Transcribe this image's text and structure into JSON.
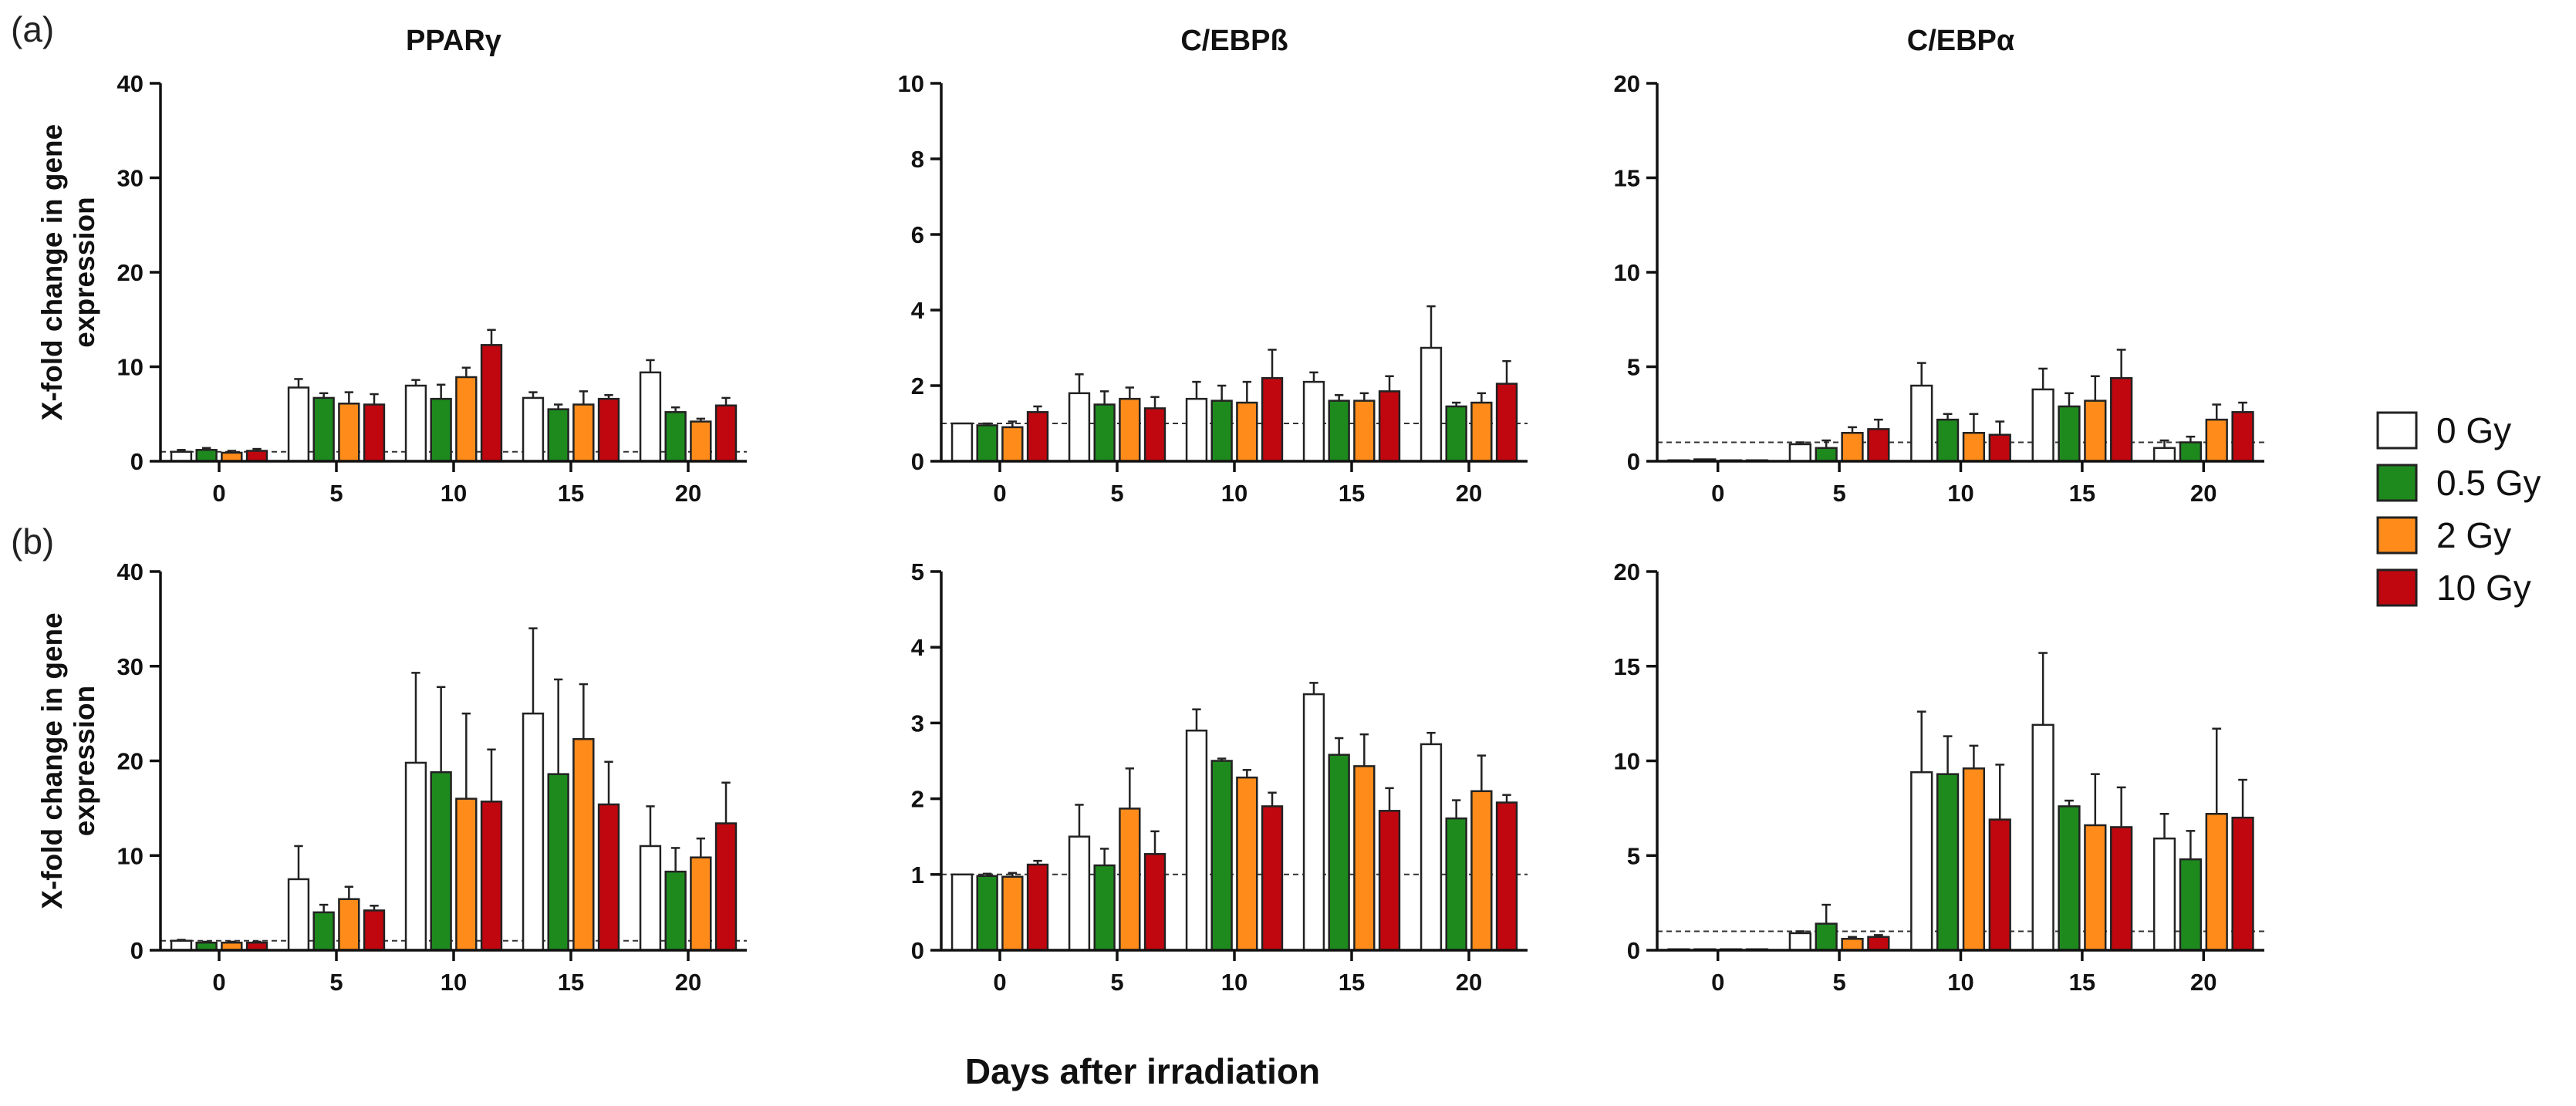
{
  "figure": {
    "panel_labels": [
      "(a)",
      "(b)"
    ],
    "xlabel": "Days after irradiation",
    "ylabel_line1": "X-fold change in gene",
    "ylabel_line2": "expression",
    "legend": [
      {
        "label": "0 Gy",
        "color": "#ffffff"
      },
      {
        "label": "0.5 Gy",
        "color": "#1e8a1e"
      },
      {
        "label": "2 Gy",
        "color": "#ff8c1a"
      },
      {
        "label": "10 Gy",
        "color": "#c0070f"
      }
    ],
    "reference_line": 1
  },
  "chart_data": [
    {
      "type": "bar",
      "row": "a",
      "col": 0,
      "title": "PPARγ",
      "categories": [
        "0",
        "5",
        "10",
        "15",
        "20"
      ],
      "ylim": [
        0,
        40
      ],
      "yticks": [
        0,
        10,
        20,
        30,
        40
      ],
      "series": [
        {
          "name": "0 Gy",
          "values": [
            1.0,
            7.8,
            8.0,
            6.7,
            9.4
          ],
          "errors": [
            0.2,
            0.9,
            0.6,
            0.6,
            1.3
          ]
        },
        {
          "name": "0.5 Gy",
          "values": [
            1.2,
            6.7,
            6.6,
            5.5,
            5.2
          ],
          "errors": [
            0.2,
            0.5,
            1.5,
            0.5,
            0.5
          ]
        },
        {
          "name": "2 Gy",
          "values": [
            0.9,
            6.1,
            8.9,
            6.0,
            4.2
          ],
          "errors": [
            0.2,
            1.2,
            1.0,
            1.4,
            0.3
          ]
        },
        {
          "name": "10 Gy",
          "values": [
            1.1,
            6.0,
            12.3,
            6.6,
            5.9
          ],
          "errors": [
            0.2,
            1.1,
            1.6,
            0.4,
            0.8
          ]
        }
      ]
    },
    {
      "type": "bar",
      "row": "a",
      "col": 1,
      "title": "C/EBPß",
      "categories": [
        "0",
        "5",
        "10",
        "15",
        "20"
      ],
      "ylim": [
        0,
        10
      ],
      "yticks": [
        0,
        2,
        4,
        6,
        8,
        10
      ],
      "series": [
        {
          "name": "0 Gy",
          "values": [
            1.0,
            1.8,
            1.65,
            2.1,
            3.0
          ],
          "errors": [
            0.0,
            0.5,
            0.45,
            0.25,
            1.1
          ]
        },
        {
          "name": "0.5 Gy",
          "values": [
            0.95,
            1.5,
            1.6,
            1.6,
            1.45
          ],
          "errors": [
            0.05,
            0.35,
            0.4,
            0.15,
            0.1
          ]
        },
        {
          "name": "2 Gy",
          "values": [
            0.9,
            1.65,
            1.55,
            1.6,
            1.55
          ],
          "errors": [
            0.15,
            0.3,
            0.55,
            0.2,
            0.25
          ]
        },
        {
          "name": "10 Gy",
          "values": [
            1.3,
            1.4,
            2.2,
            1.85,
            2.05
          ],
          "errors": [
            0.15,
            0.3,
            0.75,
            0.4,
            0.6
          ]
        }
      ]
    },
    {
      "type": "bar",
      "row": "a",
      "col": 2,
      "title": "C/EBPα",
      "categories": [
        "0",
        "5",
        "10",
        "15",
        "20"
      ],
      "ylim": [
        0,
        20
      ],
      "yticks": [
        0,
        5,
        10,
        15,
        20
      ],
      "series": [
        {
          "name": "0 Gy",
          "values": [
            0.05,
            0.9,
            4.0,
            3.8,
            0.7
          ],
          "errors": [
            0.0,
            0.1,
            1.2,
            1.1,
            0.4
          ]
        },
        {
          "name": "0.5 Gy",
          "values": [
            0.1,
            0.7,
            2.2,
            2.9,
            1.0
          ],
          "errors": [
            0.0,
            0.4,
            0.3,
            0.7,
            0.3
          ]
        },
        {
          "name": "2 Gy",
          "values": [
            0.05,
            1.5,
            1.5,
            3.2,
            2.2
          ],
          "errors": [
            0.0,
            0.3,
            1.0,
            1.3,
            0.8
          ]
        },
        {
          "name": "10 Gy",
          "values": [
            0.05,
            1.7,
            1.4,
            4.4,
            2.6
          ],
          "errors": [
            0.0,
            0.5,
            0.7,
            1.5,
            0.5
          ]
        }
      ]
    },
    {
      "type": "bar",
      "row": "b",
      "col": 0,
      "title": "",
      "categories": [
        "0",
        "5",
        "10",
        "15",
        "20"
      ],
      "ylim": [
        0,
        40
      ],
      "yticks": [
        0,
        10,
        20,
        30,
        40
      ],
      "series": [
        {
          "name": "0 Gy",
          "values": [
            1.0,
            7.5,
            19.8,
            25.0,
            11.0
          ],
          "errors": [
            0.1,
            3.5,
            9.5,
            9.0,
            4.2
          ]
        },
        {
          "name": "0.5 Gy",
          "values": [
            0.8,
            4.0,
            18.8,
            18.6,
            8.3
          ],
          "errors": [
            0.1,
            0.8,
            9.0,
            10.0,
            2.5
          ]
        },
        {
          "name": "2 Gy",
          "values": [
            0.8,
            5.4,
            16.0,
            22.3,
            9.8
          ],
          "errors": [
            0.1,
            1.3,
            9.0,
            5.8,
            2.0
          ]
        },
        {
          "name": "10 Gy",
          "values": [
            0.8,
            4.2,
            15.7,
            15.4,
            13.4
          ],
          "errors": [
            0.1,
            0.5,
            5.5,
            4.5,
            4.3
          ]
        }
      ]
    },
    {
      "type": "bar",
      "row": "b",
      "col": 1,
      "title": "",
      "categories": [
        "0",
        "5",
        "10",
        "15",
        "20"
      ],
      "ylim": [
        0,
        5
      ],
      "yticks": [
        0,
        1,
        2,
        3,
        4,
        5
      ],
      "series": [
        {
          "name": "0 Gy",
          "values": [
            1.0,
            1.5,
            2.9,
            3.38,
            2.72
          ],
          "errors": [
            0.0,
            0.42,
            0.28,
            0.15,
            0.15
          ]
        },
        {
          "name": "0.5 Gy",
          "values": [
            0.98,
            1.12,
            2.5,
            2.58,
            1.74
          ],
          "errors": [
            0.03,
            0.22,
            0.03,
            0.22,
            0.24
          ]
        },
        {
          "name": "2 Gy",
          "values": [
            0.97,
            1.87,
            2.28,
            2.43,
            2.1
          ],
          "errors": [
            0.05,
            0.53,
            0.1,
            0.42,
            0.47
          ]
        },
        {
          "name": "10 Gy",
          "values": [
            1.13,
            1.27,
            1.9,
            1.84,
            1.95
          ],
          "errors": [
            0.05,
            0.3,
            0.18,
            0.3,
            0.1
          ]
        }
      ]
    },
    {
      "type": "bar",
      "row": "b",
      "col": 2,
      "title": "",
      "categories": [
        "0",
        "5",
        "10",
        "15",
        "20"
      ],
      "ylim": [
        0,
        20
      ],
      "yticks": [
        0,
        5,
        10,
        15,
        20
      ],
      "series": [
        {
          "name": "0 Gy",
          "values": [
            0.05,
            0.9,
            9.4,
            11.9,
            5.9
          ],
          "errors": [
            0.0,
            0.1,
            3.2,
            3.8,
            1.3
          ]
        },
        {
          "name": "0.5 Gy",
          "values": [
            0.05,
            1.4,
            9.3,
            7.6,
            4.8
          ],
          "errors": [
            0.0,
            1.0,
            2.0,
            0.3,
            1.5
          ]
        },
        {
          "name": "2 Gy",
          "values": [
            0.05,
            0.6,
            9.6,
            6.6,
            7.2
          ],
          "errors": [
            0.0,
            0.1,
            1.2,
            2.7,
            4.5
          ]
        },
        {
          "name": "10 Gy",
          "values": [
            0.05,
            0.7,
            6.9,
            6.5,
            7.0
          ],
          "errors": [
            0.0,
            0.1,
            2.9,
            2.1,
            2.0
          ]
        }
      ]
    }
  ]
}
